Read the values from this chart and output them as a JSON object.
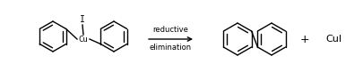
{
  "bg_color": "#ffffff",
  "arrow_text_line1": "reductive",
  "arrow_text_line2": "elimination",
  "plus_text": "+",
  "cui_text": "CuI",
  "fig_width": 4.05,
  "fig_height": 0.9,
  "dpi": 100
}
